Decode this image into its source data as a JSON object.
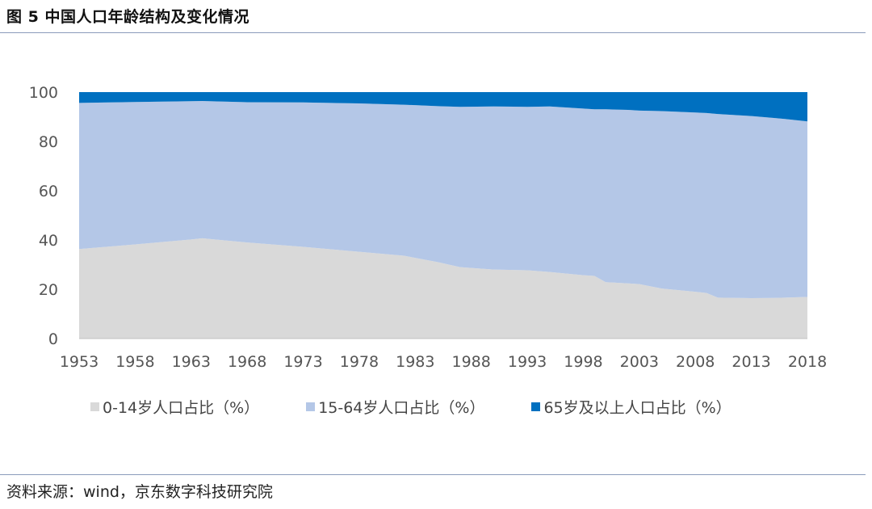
{
  "figure_title": "图 5  中国人口年龄结构及变化情况",
  "source": "资料来源：wind，京东数字科技研究院",
  "colors": {
    "child": "#d9d9d9",
    "working": "#b4c7e7",
    "elderly": "#0070c0"
  },
  "chart_data": {
    "type": "area",
    "stacked": true,
    "title": "中国人口年龄结构及变化情况",
    "xlabel": "",
    "ylabel": "",
    "ylim": [
      0,
      100
    ],
    "yticks": [
      0,
      20,
      40,
      60,
      80,
      100
    ],
    "xticks": [
      "1953",
      "1958",
      "1963",
      "1968",
      "1973",
      "1978",
      "1983",
      "1988",
      "1993",
      "1998",
      "2003",
      "2008",
      "2013",
      "2018"
    ],
    "x": [
      1953,
      1958,
      1963,
      1964,
      1968,
      1973,
      1978,
      1982,
      1985,
      1987,
      1990,
      1993,
      1995,
      1998,
      1999,
      2000,
      2002,
      2003,
      2005,
      2008,
      2009,
      2010,
      2013,
      2015,
      2016,
      2018
    ],
    "series": [
      {
        "name": "0-14岁人口占比（%）",
        "values": [
          36.3,
          38.2,
          40.2,
          40.7,
          39.0,
          37.2,
          35.2,
          33.6,
          31.0,
          29.0,
          28.0,
          27.7,
          27.0,
          25.7,
          25.4,
          22.9,
          22.4,
          22.1,
          20.3,
          19.0,
          18.5,
          16.6,
          16.4,
          16.5,
          16.6,
          16.9
        ]
      },
      {
        "name": "15-64岁人口占比（%）",
        "values": [
          59.3,
          57.8,
          56.1,
          55.7,
          56.9,
          58.6,
          60.2,
          61.3,
          63.3,
          65.0,
          66.2,
          66.3,
          67.2,
          67.6,
          67.6,
          70.1,
          70.4,
          70.4,
          72.0,
          72.7,
          73.0,
          74.5,
          73.9,
          73.0,
          72.5,
          71.2
        ]
      },
      {
        "name": "65岁及以上人口占比（%）",
        "values": [
          4.4,
          4.0,
          3.7,
          3.6,
          4.1,
          4.2,
          4.6,
          5.1,
          5.7,
          6.0,
          5.8,
          6.0,
          5.8,
          6.7,
          7.0,
          7.0,
          7.2,
          7.5,
          7.7,
          8.3,
          8.5,
          8.9,
          9.7,
          10.5,
          10.9,
          11.9
        ]
      }
    ],
    "legend": {
      "position": "bottom",
      "entries": [
        "0-14岁人口占比（%）",
        "15-64岁人口占比（%）",
        "65岁及以上人口占比（%）"
      ]
    },
    "grid": false
  }
}
